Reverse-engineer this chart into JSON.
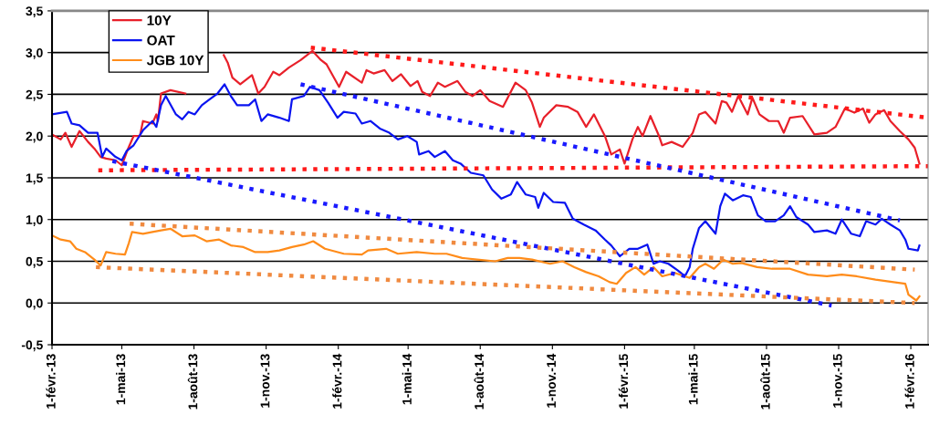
{
  "chart_data": {
    "type": "line",
    "legend": "top left",
    "grid": "y",
    "marker": "none",
    "ylim": [
      -0.5,
      3.5
    ],
    "yticks": [
      {
        "value": -0.5,
        "label": "-0,5"
      },
      {
        "value": 0,
        "label": "0,0"
      },
      {
        "value": 0.5,
        "label": "0,5"
      },
      {
        "value": 1,
        "label": "1,0"
      },
      {
        "value": 1.5,
        "label": "1,5"
      },
      {
        "value": 2,
        "label": "2,0"
      },
      {
        "value": 2.5,
        "label": "2,5"
      },
      {
        "value": 3,
        "label": "3,0"
      },
      {
        "value": 3.5,
        "label": "3,5"
      }
    ],
    "xlim": [
      "2013-02-01",
      "2016-02-23"
    ],
    "xticks": [
      {
        "value": "2013-02-01",
        "label": "1-févr.-13"
      },
      {
        "value": "2013-05-01",
        "label": "1-mai-13"
      },
      {
        "value": "2013-08-01",
        "label": "1-août-13"
      },
      {
        "value": "2013-11-01",
        "label": "1-nov.-13"
      },
      {
        "value": "2014-02-01",
        "label": "1-févr.-14"
      },
      {
        "value": "2014-05-01",
        "label": "1-mai-14"
      },
      {
        "value": "2014-08-01",
        "label": "1-août-14"
      },
      {
        "value": "2014-11-01",
        "label": "1-nov.-14"
      },
      {
        "value": "2015-02-01",
        "label": "1-févr.-15"
      },
      {
        "value": "2015-05-01",
        "label": "1-mai-15"
      },
      {
        "value": "2015-08-01",
        "label": "1-août-15"
      },
      {
        "value": "2015-11-01",
        "label": "1-nov.-15"
      },
      {
        "value": "2016-02-01",
        "label": "1-févr.-16"
      }
    ],
    "series": [
      {
        "name": "10Y",
        "color": "#e8202a",
        "line_style": "solid",
        "x": [
          "2013-02-01",
          "2013-02-12",
          "2013-02-18",
          "2013-02-26",
          "2013-03-08",
          "2013-03-19",
          "2013-03-27",
          "2013-04-04",
          "2013-04-11",
          "2013-04-23",
          "2013-05-01",
          "2013-05-09",
          "2013-05-16",
          "2013-05-24",
          "2013-05-28",
          "2013-06-09",
          "2013-06-14",
          "2013-06-16",
          "2013-06-20",
          "2013-07-02",
          "2013-07-21",
          "2013-08-20",
          "2013-09-08",
          "2013-09-13",
          "2013-09-19",
          "2013-09-29",
          "2013-10-14",
          "2013-10-22",
          "2013-10-30",
          "2013-11-10",
          "2013-11-18",
          "2013-11-30",
          "2013-12-15",
          "2013-12-30",
          "2014-01-10",
          "2014-01-17",
          "2014-02-02",
          "2014-02-11",
          "2014-03-03",
          "2014-03-09",
          "2014-03-18",
          "2014-04-01",
          "2014-04-11",
          "2014-04-22",
          "2014-05-04",
          "2014-05-13",
          "2014-05-19",
          "2014-05-29",
          "2014-06-08",
          "2014-06-17",
          "2014-07-03",
          "2014-07-13",
          "2014-07-22",
          "2014-08-01",
          "2014-08-13",
          "2014-08-30",
          "2014-09-15",
          "2014-09-28",
          "2014-10-06",
          "2014-10-16",
          "2014-10-21",
          "2014-11-06",
          "2014-11-21",
          "2014-12-03",
          "2014-12-14",
          "2014-12-24",
          "2015-01-07",
          "2015-01-15",
          "2015-01-26",
          "2015-02-01",
          "2015-02-11",
          "2015-02-18",
          "2015-02-24",
          "2015-03-06",
          "2015-03-17",
          "2015-03-21",
          "2015-04-02",
          "2015-04-16",
          "2015-04-29",
          "2015-05-07",
          "2015-05-15",
          "2015-05-28",
          "2015-06-05",
          "2015-06-11",
          "2015-06-18",
          "2015-06-26",
          "2015-07-08",
          "2015-07-14",
          "2015-07-23",
          "2015-08-04",
          "2015-08-16",
          "2015-08-23",
          "2015-08-31",
          "2015-09-16",
          "2015-10-01",
          "2015-10-17",
          "2015-10-28",
          "2015-11-09",
          "2015-11-21",
          "2015-12-02",
          "2015-12-10",
          "2015-12-18",
          "2015-12-29",
          "2016-01-06",
          "2016-01-18",
          "2016-01-29",
          "2016-02-06",
          "2016-02-12"
        ],
        "values": [
          2.02,
          1.96,
          2.04,
          1.87,
          2.06,
          1.93,
          1.85,
          1.75,
          1.73,
          1.71,
          1.65,
          1.85,
          2.0,
          2.0,
          2.18,
          2.15,
          2.26,
          2.18,
          2.51,
          2.55,
          2.51,
          null,
          2.97,
          2.88,
          2.7,
          2.62,
          2.73,
          2.51,
          2.59,
          2.77,
          2.73,
          2.82,
          2.91,
          3.02,
          2.91,
          2.86,
          2.59,
          2.77,
          2.64,
          2.79,
          2.75,
          2.79,
          2.66,
          2.74,
          2.6,
          2.66,
          2.53,
          2.48,
          2.64,
          2.59,
          2.66,
          2.53,
          2.48,
          2.55,
          2.42,
          2.35,
          2.64,
          2.55,
          2.4,
          2.11,
          2.22,
          2.37,
          2.35,
          2.29,
          2.11,
          2.26,
          2.0,
          1.78,
          1.84,
          1.67,
          1.96,
          2.11,
          2.0,
          2.24,
          2.0,
          1.89,
          1.93,
          1.87,
          2.04,
          2.26,
          2.29,
          2.15,
          2.42,
          2.4,
          2.29,
          2.48,
          2.26,
          2.46,
          2.26,
          2.18,
          2.18,
          2.04,
          2.22,
          2.24,
          2.02,
          2.04,
          2.11,
          2.33,
          2.28,
          2.33,
          2.16,
          2.26,
          2.31,
          2.18,
          2.06,
          1.96,
          1.86,
          1.67
        ]
      },
      {
        "name": "OAT",
        "color": "#0a14f0",
        "line_style": "solid",
        "x": [
          "2013-02-01",
          "2013-02-20",
          "2013-02-26",
          "2013-03-08",
          "2013-03-19",
          "2013-03-31",
          "2013-04-06",
          "2013-04-11",
          "2013-04-23",
          "2013-05-01",
          "2013-05-07",
          "2013-05-16",
          "2013-05-28",
          "2013-06-09",
          "2013-06-14",
          "2013-06-20",
          "2013-06-26",
          "2013-07-09",
          "2013-07-17",
          "2013-07-25",
          "2013-08-02",
          "2013-08-11",
          "2013-08-21",
          "2013-08-31",
          "2013-09-09",
          "2013-09-17",
          "2013-09-25",
          "2013-10-10",
          "2013-10-18",
          "2013-10-26",
          "2013-11-03",
          "2013-11-18",
          "2013-11-30",
          "2013-12-04",
          "2013-12-19",
          "2013-12-27",
          "2014-01-08",
          "2014-01-19",
          "2014-01-31",
          "2014-02-08",
          "2014-02-23",
          "2014-03-03",
          "2014-03-14",
          "2014-03-26",
          "2014-04-07",
          "2014-04-18",
          "2014-04-30",
          "2014-05-12",
          "2014-05-15",
          "2014-05-27",
          "2014-06-04",
          "2014-06-17",
          "2014-06-27",
          "2014-07-07",
          "2014-07-20",
          "2014-08-05",
          "2014-08-16",
          "2014-08-28",
          "2014-09-09",
          "2014-09-17",
          "2014-09-28",
          "2014-10-10",
          "2014-10-14",
          "2014-10-21",
          "2014-11-02",
          "2014-11-17",
          "2014-11-27",
          "2014-12-11",
          "2014-12-26",
          "2015-01-07",
          "2015-01-15",
          "2015-01-26",
          "2015-02-07",
          "2015-02-18",
          "2015-03-02",
          "2015-03-10",
          "2015-03-18",
          "2015-03-29",
          "2015-04-10",
          "2015-04-19",
          "2015-04-25",
          "2015-04-29",
          "2015-05-07",
          "2015-05-15",
          "2015-05-28",
          "2015-06-03",
          "2015-06-09",
          "2015-06-19",
          "2015-07-02",
          "2015-07-12",
          "2015-07-21",
          "2015-07-31",
          "2015-08-12",
          "2015-08-23",
          "2015-08-31",
          "2015-09-08",
          "2015-09-23",
          "2015-10-01",
          "2015-10-17",
          "2015-10-28",
          "2015-11-05",
          "2015-11-17",
          "2015-11-28",
          "2015-12-06",
          "2015-12-18",
          "2015-12-26",
          "2016-01-06",
          "2016-01-18",
          "2016-01-25",
          "2016-01-29",
          "2016-02-10",
          "2016-02-12"
        ],
        "values": [
          2.26,
          2.29,
          2.15,
          2.13,
          2.04,
          2.04,
          1.75,
          1.85,
          1.75,
          1.71,
          1.82,
          1.89,
          2.07,
          2.18,
          2.11,
          2.37,
          2.48,
          2.26,
          2.2,
          2.29,
          2.26,
          2.37,
          2.44,
          2.51,
          2.62,
          2.48,
          2.37,
          2.37,
          2.44,
          2.18,
          2.26,
          2.22,
          2.18,
          2.44,
          2.48,
          2.59,
          2.55,
          2.4,
          2.22,
          2.29,
          2.27,
          2.15,
          2.18,
          2.09,
          2.04,
          1.96,
          2.0,
          1.93,
          1.78,
          1.82,
          1.75,
          1.82,
          1.71,
          1.67,
          1.56,
          1.53,
          1.36,
          1.25,
          1.3,
          1.45,
          1.3,
          1.27,
          1.14,
          1.32,
          1.21,
          1.2,
          1.01,
          0.94,
          0.87,
          0.76,
          0.69,
          0.56,
          0.65,
          0.65,
          0.7,
          0.47,
          0.5,
          0.47,
          0.39,
          0.32,
          0.43,
          0.65,
          0.9,
          0.98,
          0.83,
          1.16,
          1.31,
          1.23,
          1.29,
          1.27,
          1.05,
          0.98,
          0.98,
          1.05,
          1.16,
          1.03,
          0.94,
          0.85,
          0.87,
          0.83,
          1.0,
          0.83,
          0.8,
          0.98,
          0.94,
          1.01,
          0.94,
          0.87,
          0.76,
          0.65,
          0.63,
          0.69
        ]
      },
      {
        "name": "JGB 10Y",
        "color": "#ff8c1a",
        "line_style": "solid",
        "x": [
          "2013-02-01",
          "2013-02-12",
          "2013-02-24",
          "2013-03-04",
          "2013-03-15",
          "2013-03-27",
          "2013-04-04",
          "2013-04-11",
          "2013-04-23",
          "2013-05-05",
          "2013-05-10",
          "2013-05-14",
          "2013-05-28",
          "2013-06-09",
          "2013-06-20",
          "2013-07-02",
          "2013-07-17",
          "2013-08-02",
          "2013-08-17",
          "2013-09-02",
          "2013-09-17",
          "2013-10-03",
          "2013-10-18",
          "2013-11-03",
          "2013-11-18",
          "2013-12-04",
          "2013-12-19",
          "2013-12-31",
          "2014-01-15",
          "2014-02-08",
          "2014-03-03",
          "2014-03-11",
          "2014-04-03",
          "2014-04-18",
          "2014-05-12",
          "2014-06-04",
          "2014-06-19",
          "2014-07-09",
          "2014-07-28",
          "2014-08-20",
          "2014-09-05",
          "2014-09-20",
          "2014-10-06",
          "2014-10-29",
          "2014-11-14",
          "2014-11-29",
          "2014-12-14",
          "2014-12-30",
          "2015-01-13",
          "2015-01-22",
          "2015-02-03",
          "2015-02-15",
          "2015-02-26",
          "2015-03-10",
          "2015-03-21",
          "2015-04-06",
          "2015-04-25",
          "2015-05-07",
          "2015-05-15",
          "2015-05-26",
          "2015-06-07",
          "2015-06-19",
          "2015-06-30",
          "2015-07-20",
          "2015-08-08",
          "2015-08-31",
          "2015-09-23",
          "2015-10-17",
          "2015-11-05",
          "2015-11-24",
          "2015-12-18",
          "2016-01-10",
          "2016-01-25",
          "2016-01-29",
          "2016-02-08",
          "2016-02-12"
        ],
        "values": [
          0.81,
          0.76,
          0.74,
          0.65,
          0.61,
          0.52,
          0.45,
          0.61,
          0.59,
          0.58,
          0.72,
          0.85,
          0.83,
          0.85,
          0.87,
          0.89,
          0.8,
          0.81,
          0.74,
          0.76,
          0.69,
          0.67,
          0.61,
          0.61,
          0.63,
          0.67,
          0.7,
          0.74,
          0.65,
          0.59,
          0.58,
          0.63,
          0.65,
          0.59,
          0.61,
          0.59,
          0.59,
          0.54,
          0.52,
          0.5,
          0.54,
          0.54,
          0.52,
          0.47,
          0.5,
          0.43,
          0.37,
          0.32,
          0.25,
          0.23,
          0.36,
          0.43,
          0.34,
          0.43,
          0.32,
          0.36,
          0.3,
          0.43,
          0.47,
          0.41,
          0.52,
          0.47,
          0.48,
          0.43,
          0.41,
          0.41,
          0.34,
          0.32,
          0.34,
          0.32,
          0.28,
          0.25,
          0.23,
          0.1,
          0.03,
          0.08
        ]
      },
      {
        "color": "#ff1a1a",
        "line_style": "dotted",
        "x": [
          "2013-12-28",
          "2016-02-23"
        ],
        "values": [
          3.06,
          2.22
        ]
      },
      {
        "color": "#ff1a1a",
        "line_style": "dotted",
        "x": [
          "2013-04-01",
          "2016-02-23"
        ],
        "values": [
          1.59,
          1.64
        ]
      },
      {
        "color": "#1a1aff",
        "line_style": "dotted",
        "x": [
          "2013-12-15",
          "2016-01-18"
        ],
        "values": [
          2.62,
          0.99
        ]
      },
      {
        "color": "#1a1aff",
        "line_style": "dotted",
        "x": [
          "2013-04-19",
          "2015-10-23"
        ],
        "values": [
          1.7,
          -0.03
        ]
      },
      {
        "color": "#f08a40",
        "line_style": "dotted",
        "x": [
          "2013-05-11",
          "2016-02-06"
        ],
        "values": [
          0.95,
          0.4
        ]
      },
      {
        "color": "#f08a40",
        "line_style": "dotted",
        "x": [
          "2013-03-29",
          "2016-02-06"
        ],
        "values": [
          0.43,
          0.0
        ]
      }
    ]
  }
}
